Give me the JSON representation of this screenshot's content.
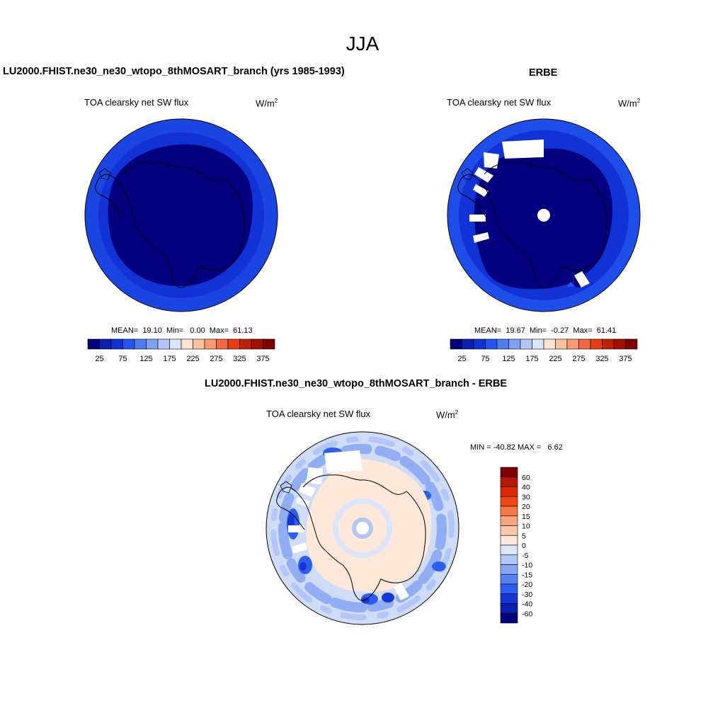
{
  "figure": {
    "title": "JJA"
  },
  "icons": [
    "antarctica-map"
  ],
  "chart_data": [
    {
      "type": "heatmap",
      "projection": "south-polar-stereographic",
      "title": "LU2000.FHIST.ne30_ne30_wtopo_8thMOSART_branch (yrs 1985-1993)",
      "variable": "TOA clearsky net SW flux",
      "units": "W/m",
      "units_sup": "2",
      "stats_text": "MEAN=  19.10  Min=   0.00  Max=  61.13",
      "stats": {
        "mean": 19.1,
        "min": 0.0,
        "max": 61.13
      },
      "colorbar": {
        "orientation": "horizontal",
        "levels": [
          25,
          50,
          75,
          100,
          125,
          150,
          175,
          200,
          225,
          250,
          275,
          300,
          325,
          350,
          375
        ],
        "tick_labels": [
          "25",
          "75",
          "125",
          "175",
          "225",
          "275",
          "325",
          "375"
        ],
        "colors": [
          "#02007f",
          "#0a1fb3",
          "#1133d5",
          "#2653ef",
          "#4f7cf0",
          "#7fa1f3",
          "#b2c6f7",
          "#dbe6fb",
          "#fde3d0",
          "#fbc2a1",
          "#f89970",
          "#f26a3d",
          "#e63d14",
          "#c22204",
          "#a70e02",
          "#7f0000"
        ]
      }
    },
    {
      "type": "heatmap",
      "projection": "south-polar-stereographic",
      "title": "ERBE",
      "variable": "TOA clearsky net SW flux",
      "units": "W/m",
      "units_sup": "2",
      "stats_text": "MEAN=  19.67  Min=  -0.27  Max=  61.41",
      "stats": {
        "mean": 19.67,
        "min": -0.27,
        "max": 61.41
      },
      "colorbar": {
        "orientation": "horizontal",
        "levels": [
          25,
          50,
          75,
          100,
          125,
          150,
          175,
          200,
          225,
          250,
          275,
          300,
          325,
          350,
          375
        ],
        "tick_labels": [
          "25",
          "75",
          "125",
          "175",
          "225",
          "275",
          "325",
          "375"
        ],
        "colors": [
          "#02007f",
          "#0a1fb3",
          "#1133d5",
          "#2653ef",
          "#4f7cf0",
          "#7fa1f3",
          "#b2c6f7",
          "#dbe6fb",
          "#fde3d0",
          "#fbc2a1",
          "#f89970",
          "#f26a3d",
          "#e63d14",
          "#c22204",
          "#a70e02",
          "#7f0000"
        ]
      }
    },
    {
      "type": "heatmap",
      "projection": "south-polar-stereographic",
      "title": "LU2000.FHIST.ne30_ne30_wtopo_8thMOSART_branch - ERBE",
      "variable": "TOA clearsky net SW flux",
      "units": "W/m",
      "units_sup": "2",
      "stats_text": "MIN = -40.82 MAX =   6.62",
      "stats": {
        "min": -40.82,
        "max": 6.62
      },
      "colorbar": {
        "orientation": "vertical",
        "tick_labels_top_to_bottom": [
          "60",
          "40",
          "30",
          "20",
          "15",
          "10",
          "5",
          "0",
          "-5",
          "-10",
          "-15",
          "-20",
          "-30",
          "-40",
          "-60"
        ],
        "colors_top_to_bottom": [
          "#7f0000",
          "#b81703",
          "#d92a05",
          "#f2470f",
          "#f6784a",
          "#f9a57f",
          "#fbc7a9",
          "#fde8da",
          "#dbe6fb",
          "#b2c6f7",
          "#86a6f3",
          "#5782ef",
          "#2e5ef0",
          "#1535d4",
          "#0a1fb0",
          "#02007f"
        ]
      }
    }
  ]
}
